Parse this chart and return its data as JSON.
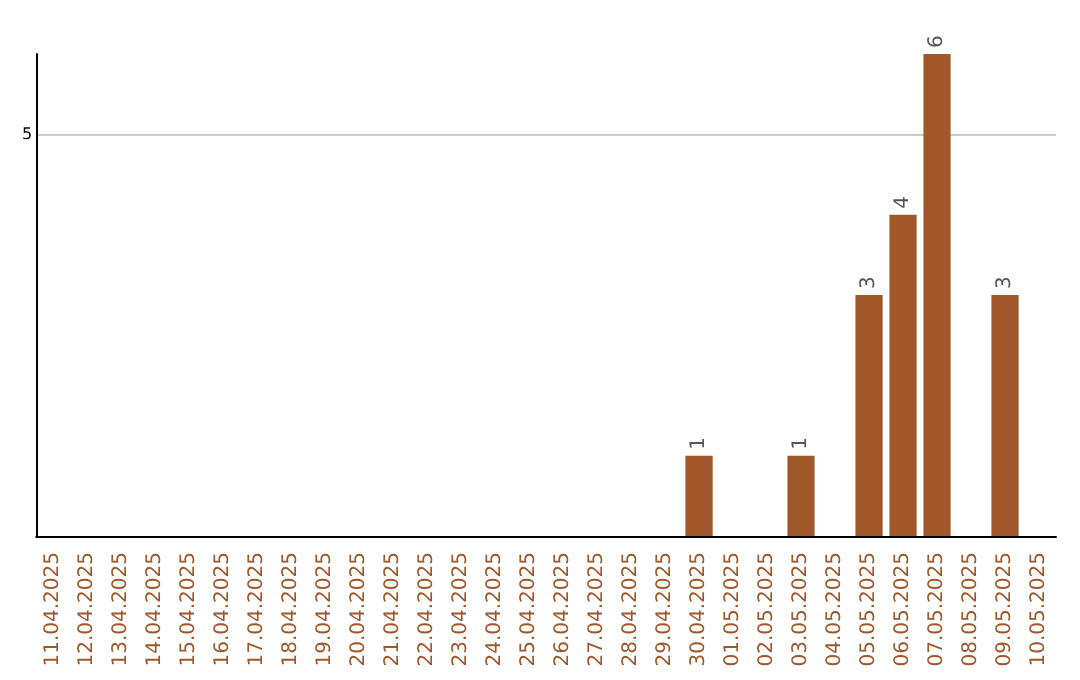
{
  "chart_data": {
    "type": "bar",
    "categories": [
      "11.04.2025",
      "12.04.2025",
      "13.04.2025",
      "14.04.2025",
      "15.04.2025",
      "16.04.2025",
      "17.04.2025",
      "18.04.2025",
      "19.04.2025",
      "20.04.2025",
      "21.04.2025",
      "22.04.2025",
      "23.04.2025",
      "24.04.2025",
      "25.04.2025",
      "26.04.2025",
      "27.04.2025",
      "28.04.2025",
      "29.04.2025",
      "30.04.2025",
      "01.05.2025",
      "02.05.2025",
      "03.05.2025",
      "04.05.2025",
      "05.05.2025",
      "06.05.2025",
      "07.05.2025",
      "08.05.2025",
      "09.05.2025",
      "10.05.2025"
    ],
    "values": [
      null,
      null,
      null,
      null,
      null,
      null,
      null,
      null,
      null,
      null,
      null,
      null,
      null,
      null,
      null,
      null,
      null,
      null,
      null,
      1,
      null,
      null,
      1,
      null,
      3,
      4,
      6,
      null,
      3,
      null
    ],
    "color": "#a0572a",
    "ylim": [
      0,
      6
    ],
    "yticks": [
      5
    ],
    "grid": "y",
    "data_labels": true
  }
}
